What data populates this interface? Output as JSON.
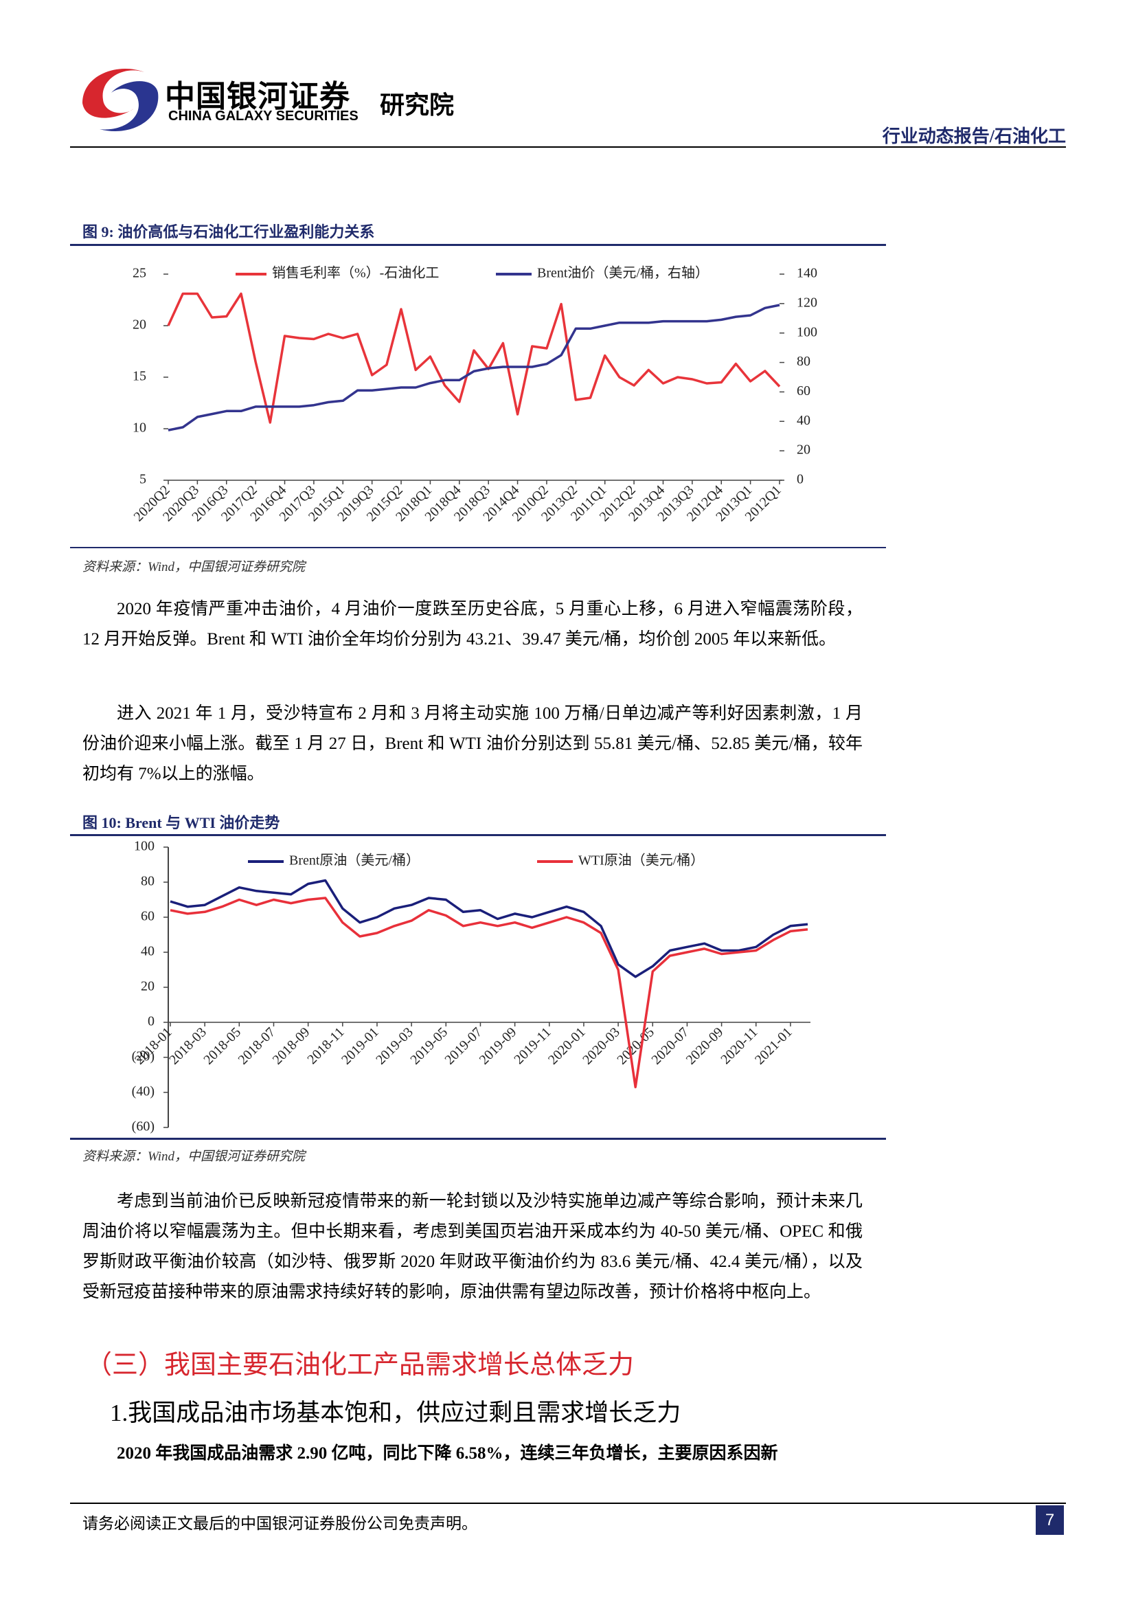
{
  "header": {
    "logo_cn": "中国银河证券",
    "logo_en": "CHINA GALAXY SECURITIES",
    "institute": "研究院",
    "report_type": "行业动态报告/石油化工"
  },
  "chart_data": [
    {
      "type": "line",
      "title": "图 9:  油价高低与石油化工行业盈利能力关系",
      "source": "资料来源：Wind，中国银河证券研究院",
      "categories": [
        "2020Q2",
        null,
        "2020Q3",
        null,
        "2016Q3",
        null,
        "2017Q2",
        null,
        "2016Q4",
        null,
        "2017Q3",
        null,
        "2015Q1",
        null,
        "2019Q3",
        null,
        "2015Q2",
        null,
        "2018Q1",
        null,
        "2018Q4",
        null,
        "2018Q3",
        null,
        "2014Q4",
        null,
        "2010Q2",
        null,
        "2013Q2",
        null,
        "2011Q1",
        null,
        "2012Q2",
        null,
        "2013Q4",
        null,
        "2013Q3",
        null,
        "2012Q4",
        null,
        "2013Q1",
        null,
        "2012Q1"
      ],
      "series": [
        {
          "name": "销售毛利率（%）-石油化工",
          "color": "#e8343a",
          "values": [
            20.0,
            23.1,
            23.1,
            20.8,
            20.9,
            23.1,
            16.5,
            10.6,
            19.0,
            18.8,
            18.7,
            19.2,
            18.8,
            19.2,
            15.2,
            16.2,
            21.6,
            15.7,
            17.0,
            14.2,
            12.6,
            17.6,
            15.8,
            18.3,
            11.4,
            18.0,
            17.8,
            22.1,
            12.8,
            13.0,
            17.1,
            15.0,
            14.2,
            15.7,
            14.4,
            15.0,
            14.8,
            14.4,
            14.5,
            16.3,
            14.6,
            15.6,
            14.1
          ]
        },
        {
          "name": "Brent油价（美元/桶，右轴）",
          "color": "#33348e",
          "axis": "y2",
          "values": [
            34,
            36,
            43,
            45,
            47,
            47,
            50,
            50,
            50,
            50,
            51,
            53,
            54,
            61,
            61,
            62,
            63,
            63,
            66,
            68,
            68,
            74,
            76,
            77,
            77,
            77,
            79,
            85,
            103,
            103,
            105,
            107,
            107,
            107,
            108,
            108,
            108,
            108,
            109,
            111,
            112,
            117,
            119
          ]
        }
      ],
      "ylim": [
        5,
        25
      ],
      "yticks": [
        5,
        10,
        15,
        20,
        25
      ],
      "y2lim": [
        0,
        140
      ],
      "y2ticks": [
        0,
        20,
        40,
        60,
        80,
        100,
        120,
        140
      ]
    },
    {
      "type": "line",
      "title": "图 10:  Brent 与 WTI 油价走势",
      "source": "资料来源：Wind，中国银河证券研究院",
      "categories": [
        "2018-01",
        null,
        "2018-03",
        null,
        "2018-05",
        null,
        "2018-07",
        null,
        "2018-09",
        null,
        "2018-11",
        null,
        "2019-01",
        null,
        "2019-03",
        null,
        "2019-05",
        null,
        "2019-07",
        null,
        "2019-09",
        null,
        "2019-11",
        null,
        "2020-01",
        null,
        "2020-03",
        null,
        "2020-05",
        null,
        "2020-07",
        null,
        "2020-09",
        null,
        "2020-11",
        null,
        "2021-01",
        null
      ],
      "series": [
        {
          "name": "Brent原油（美元/桶）",
          "color": "#1a1f7a",
          "values": [
            69,
            66,
            67,
            72,
            77,
            75,
            74,
            73,
            79,
            81,
            65,
            57,
            60,
            65,
            67,
            71,
            70,
            63,
            64,
            59,
            62,
            60,
            63,
            66,
            63,
            55,
            33,
            26,
            32,
            41,
            43,
            45,
            41,
            41,
            43,
            50,
            55,
            56
          ]
        },
        {
          "name": "WTI原油（美元/桶）",
          "color": "#e8303a",
          "values": [
            64,
            62,
            63,
            66,
            70,
            67,
            70,
            68,
            70,
            71,
            57,
            49,
            51,
            55,
            58,
            64,
            61,
            55,
            57,
            55,
            57,
            54,
            57,
            60,
            57,
            51,
            30,
            -37,
            29,
            38,
            40,
            42,
            39,
            40,
            41,
            47,
            52,
            53
          ]
        }
      ],
      "ylim": [
        -60,
        100
      ],
      "yticks": [
        {
          "value": -60,
          "label": "(60)"
        },
        {
          "value": -40,
          "label": "(40)"
        },
        {
          "value": -20,
          "label": "(20)"
        },
        0,
        20,
        40,
        60,
        80,
        100
      ]
    }
  ],
  "paragraphs": [
    "2020 年疫情严重冲击油价，4 月油价一度跌至历史谷底，5 月重心上移，6 月进入窄幅震荡阶段，12 月开始反弹。Brent 和 WTI 油价全年均价分别为 43.21、39.47 美元/桶，均价创 2005 年以来新低。",
    "进入 2021 年 1 月，受沙特宣布 2 月和 3 月将主动实施 100 万桶/日单边减产等利好因素刺激，1 月份油价迎来小幅上涨。截至 1 月 27 日，Brent 和 WTI 油价分别达到 55.81 美元/桶、52.85 美元/桶，较年初均有 7%以上的涨幅。",
    "考虑到当前油价已反映新冠疫情带来的新一轮封锁以及沙特实施单边减产等综合影响，预计未来几周油价将以窄幅震荡为主。但中长期来看，考虑到美国页岩油开采成本约为 40-50 美元/桶、OPEC 和俄罗斯财政平衡油价较高（如沙特、俄罗斯 2020 年财政平衡油价约为 83.6 美元/桶、42.4 美元/桶），以及受新冠疫苗接种带来的原油需求持续好转的影响，原油供需有望边际改善，预计价格将中枢向上。"
  ],
  "section_heading": "（三）我国主要石油化工产品需求增长总体乏力",
  "subsection_heading": "1.我国成品油市场基本饱和，供应过剩且需求增长乏力",
  "bold_paragraph": "2020 年我国成品油需求 2.90 亿吨，同比下降 6.58%，连续三年负增长，主要原因系因新",
  "footer": {
    "disclaimer": "请务必阅读正文最后的中国银河证券股份公司免责声明。",
    "page": "7"
  }
}
